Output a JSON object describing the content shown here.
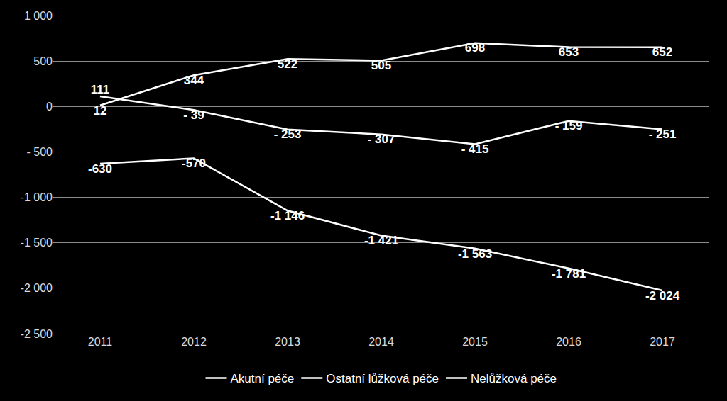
{
  "chart_data": {
    "type": "line",
    "categories": [
      "2011",
      "2012",
      "2013",
      "2014",
      "2015",
      "2016",
      "2017"
    ],
    "series": [
      {
        "name": "Akutní péče",
        "color": "#ffffff",
        "values": [
          -630,
          -570,
          -1146,
          -1421,
          -1563,
          -1781,
          -2024
        ],
        "value_labels": [
          "-630",
          "-570",
          "-1 146",
          "-1 421",
          "-1 563",
          "-1 781",
          "-2 024"
        ]
      },
      {
        "name": "Ostatní lůžková péče",
        "color": "#ffffff",
        "values": [
          111,
          -39,
          -253,
          -307,
          -415,
          -159,
          -251
        ],
        "value_labels": [
          "111",
          "- 39",
          "- 253",
          "- 307",
          "- 415",
          "- 159",
          "- 251"
        ]
      },
      {
        "name": "Nelůžková péče",
        "color": "#ffffff",
        "values": [
          12,
          344,
          522,
          505,
          698,
          653,
          652
        ],
        "value_labels": [
          "12",
          "344",
          "522",
          "505",
          "698",
          "653",
          "652"
        ]
      }
    ],
    "ylim": [
      -2500,
      1000
    ],
    "yticks": [
      {
        "value": -2500,
        "label": "-2 500"
      },
      {
        "value": -2000,
        "label": "-2 000"
      },
      {
        "value": -1500,
        "label": "-1 500"
      },
      {
        "value": -1000,
        "label": "-1 000"
      },
      {
        "value": -500,
        "label": "- 500"
      },
      0,
      500,
      {
        "value": 1000,
        "label": "1 000"
      }
    ],
    "grid": true,
    "legend": "bottom",
    "data_labels": true
  }
}
